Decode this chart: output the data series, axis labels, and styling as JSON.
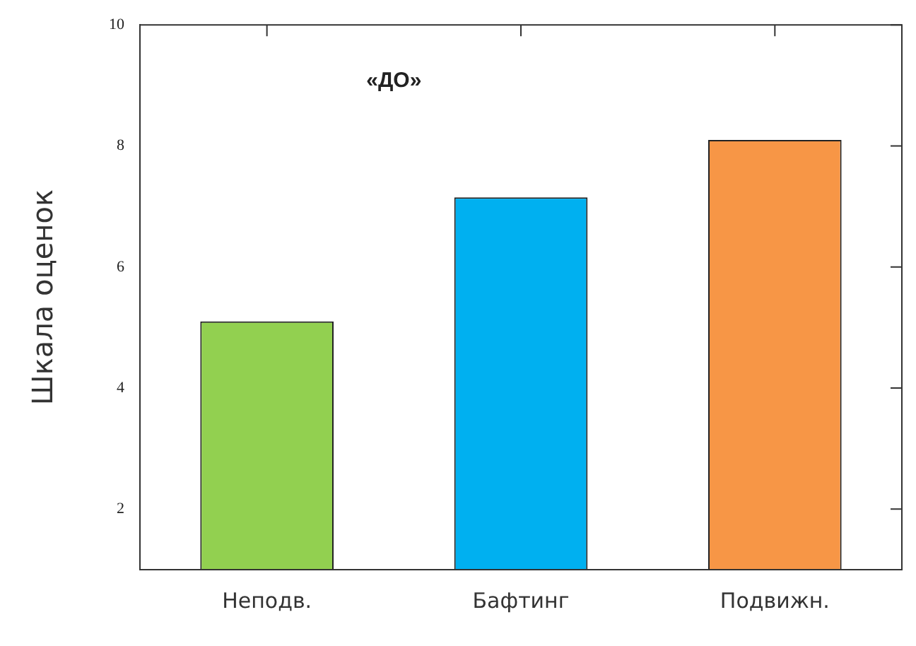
{
  "chart_data": {
    "type": "bar",
    "title": "«ДО»",
    "ylabel": "Шкала оценок",
    "categories": [
      "Неподв.",
      "Бафтинг",
      "Подвижн."
    ],
    "values": [
      5.1,
      7.15,
      8.1
    ],
    "colors": [
      "#92d050",
      "#00b0f0",
      "#f79646"
    ],
    "ylim": [
      1,
      10
    ],
    "yticks": [
      2,
      4,
      6,
      8,
      10
    ],
    "grid": false,
    "legend": false
  }
}
